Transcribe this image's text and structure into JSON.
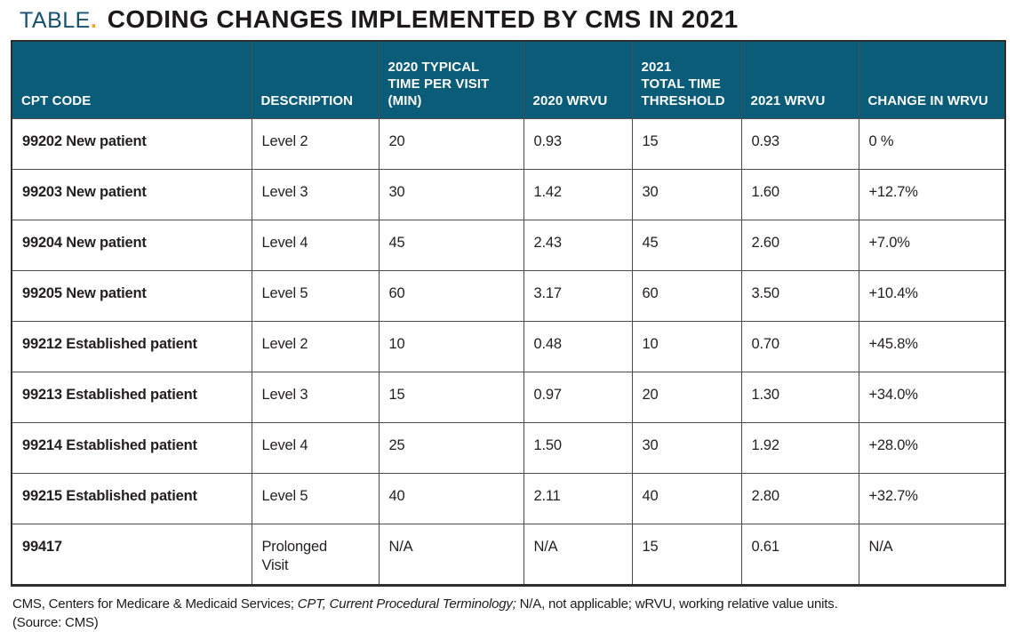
{
  "title": {
    "prefix": "TABLE",
    "dot": ".",
    "main": "CODING CHANGES IMPLEMENTED BY CMS IN 2021"
  },
  "colors": {
    "header_bg": "#0a5c78",
    "title_teal": "#175170",
    "accent_gold": "#f0a41e",
    "grid_line": "#4b4b4b",
    "body_text": "#231f20"
  },
  "table": {
    "columns": [
      {
        "label": "CPT CODE",
        "lines": [
          "CPT CODE"
        ]
      },
      {
        "label": "DESCRIPTION",
        "lines": [
          "DESCRIPTION"
        ]
      },
      {
        "label": "2020 TYPICAL TIME PER VISIT (MIN)",
        "lines": [
          "2020 TYPICAL",
          "TIME PER VISIT",
          "(MIN)"
        ]
      },
      {
        "label": "2020 WRVU",
        "lines": [
          "2020 WRVU"
        ]
      },
      {
        "label": "2021 TOTAL TIME THRESHOLD",
        "lines": [
          "2021",
          "TOTAL TIME",
          "THRESHOLD"
        ]
      },
      {
        "label": "2021 WRVU",
        "lines": [
          "2021 WRVU"
        ]
      },
      {
        "label": "CHANGE IN WRVU",
        "lines": [
          "CHANGE IN WRVU"
        ]
      }
    ],
    "rows": [
      [
        "99202 New patient",
        "Level 2",
        "20",
        "0.93",
        "15",
        "0.93",
        "0 %"
      ],
      [
        "99203 New patient",
        "Level 3",
        "30",
        "1.42",
        "30",
        "1.60",
        "+12.7%"
      ],
      [
        "99204 New patient",
        "Level 4",
        "45",
        "2.43",
        "45",
        "2.60",
        "+7.0%"
      ],
      [
        "99205 New patient",
        "Level 5",
        "60",
        "3.17",
        "60",
        "3.50",
        "+10.4%"
      ],
      [
        "99212 Established patient",
        "Level 2",
        "10",
        "0.48",
        "10",
        "0.70",
        "+45.8%"
      ],
      [
        "99213 Established patient",
        "Level 3",
        "15",
        "0.97",
        "20",
        "1.30",
        "+34.0%"
      ],
      [
        "99214 Established patient",
        "Level 4",
        "25",
        "1.50",
        "30",
        "1.92",
        "+28.0%"
      ],
      [
        "99215 Established patient",
        "Level 5",
        "40",
        "2.11",
        "40",
        "2.80",
        "+32.7%"
      ],
      [
        "99417",
        "Prolonged Visit",
        "N/A",
        "N/A",
        "15",
        "0.61",
        "N/A"
      ]
    ]
  },
  "footnote": {
    "part1": "CMS, Centers for Medicare & Medicaid Services; ",
    "italic": "CPT, Current Procedural Terminology;",
    "part2": " N/A, not applicable; wRVU, working relative value units.",
    "source": "(Source: CMS)"
  }
}
